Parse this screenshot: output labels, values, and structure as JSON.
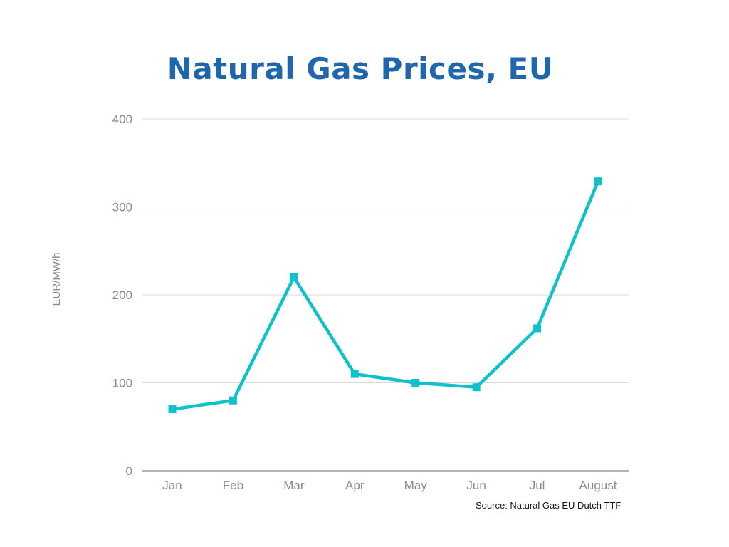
{
  "chart_data": {
    "type": "line",
    "title": "Natural Gas Prices, EU",
    "ylabel": "EUR/MW/h",
    "xlabel": "",
    "categories": [
      "Jan",
      "Feb",
      "Mar",
      "Apr",
      "May",
      "Jun",
      "Jul",
      "August"
    ],
    "series": [
      {
        "values": [
          70,
          80,
          220,
          110,
          100,
          95,
          162,
          329
        ]
      }
    ],
    "ylim": [
      0,
      400
    ],
    "yticks": [
      "0",
      "100",
      "200",
      "300",
      "400"
    ],
    "grid": "horizontal",
    "legend": "none",
    "colors": {
      "line": "#0fc1cb",
      "title": "#1f66ad",
      "grid": "#d9d9d9",
      "axis": "#9a9a9a",
      "tick_text": "#8a8a8a"
    }
  },
  "source": "Source: Natural Gas EU Dutch TTF"
}
